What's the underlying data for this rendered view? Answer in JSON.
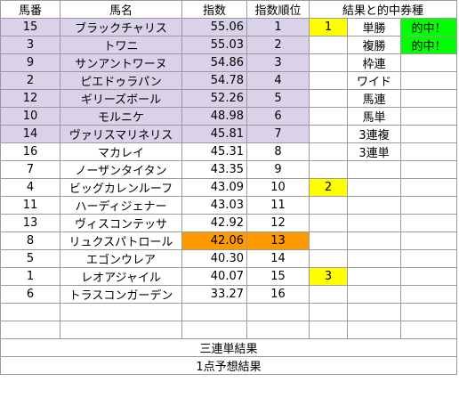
{
  "header": {
    "umaban": "馬番",
    "bamei": "馬名",
    "shisu": "指数",
    "junni": "指数順位",
    "kekka": "結果と的中券種"
  },
  "rows": [
    {
      "umaban": "15",
      "bamei": "ブラックチャリス",
      "shisu": "55.06",
      "junni": "1",
      "place": "1",
      "bet": "単勝",
      "hit": "的中！"
    },
    {
      "umaban": "3",
      "bamei": "トワニ",
      "shisu": "55.03",
      "junni": "2",
      "place": "",
      "bet": "複勝",
      "hit": "的中！"
    },
    {
      "umaban": "9",
      "bamei": "サンアントワーヌ",
      "shisu": "54.86",
      "junni": "3",
      "place": "",
      "bet": "枠連",
      "hit": ""
    },
    {
      "umaban": "2",
      "bamei": "ピエドゥラパン",
      "shisu": "54.78",
      "junni": "4",
      "place": "",
      "bet": "ワイド",
      "hit": ""
    },
    {
      "umaban": "12",
      "bamei": "ギリーズボール",
      "shisu": "52.26",
      "junni": "5",
      "place": "",
      "bet": "馬連",
      "hit": ""
    },
    {
      "umaban": "10",
      "bamei": "モルニケ",
      "shisu": "48.98",
      "junni": "6",
      "place": "",
      "bet": "馬単",
      "hit": ""
    },
    {
      "umaban": "14",
      "bamei": "ヴァリスマリネリス",
      "shisu": "45.81",
      "junni": "7",
      "place": "",
      "bet": "3連複",
      "hit": ""
    },
    {
      "umaban": "16",
      "bamei": "マカレイ",
      "shisu": "45.31",
      "junni": "8",
      "place": "",
      "bet": "3連単",
      "hit": ""
    },
    {
      "umaban": "7",
      "bamei": "ノーザンタイタン",
      "shisu": "43.35",
      "junni": "9",
      "place": "",
      "bet": "",
      "hit": ""
    },
    {
      "umaban": "4",
      "bamei": "ビッグカレンルーフ",
      "shisu": "43.09",
      "junni": "10",
      "place": "2",
      "bet": "",
      "hit": ""
    },
    {
      "umaban": "11",
      "bamei": "ハーディジェナー",
      "shisu": "43.03",
      "junni": "11",
      "place": "",
      "bet": "",
      "hit": ""
    },
    {
      "umaban": "13",
      "bamei": "ヴィスコンテッサ",
      "shisu": "42.92",
      "junni": "12",
      "place": "",
      "bet": "",
      "hit": ""
    },
    {
      "umaban": "8",
      "bamei": "リュクスパトロール",
      "shisu": "42.06",
      "junni": "13",
      "place": "",
      "bet": "",
      "hit": ""
    },
    {
      "umaban": "5",
      "bamei": "エゴンウレア",
      "shisu": "40.30",
      "junni": "14",
      "place": "",
      "bet": "",
      "hit": ""
    },
    {
      "umaban": "1",
      "bamei": "レオアジャイル",
      "shisu": "40.07",
      "junni": "15",
      "place": "3",
      "bet": "",
      "hit": ""
    },
    {
      "umaban": "6",
      "bamei": "トラスコンガーデン",
      "shisu": "33.27",
      "junni": "16",
      "place": "",
      "bet": "",
      "hit": ""
    },
    {
      "umaban": "",
      "bamei": "",
      "shisu": "",
      "junni": "",
      "place": "",
      "bet": "",
      "hit": ""
    },
    {
      "umaban": "",
      "bamei": "",
      "shisu": "",
      "junni": "",
      "place": "",
      "bet": "",
      "hit": ""
    }
  ],
  "footer": {
    "sanrentan_kekka": "三連単結果",
    "itten_yosou": "1点予想結果"
  },
  "colors": {
    "lavender": "#d9d2e9",
    "orange": "#ff9900",
    "yellow": "#ffff00",
    "green": "#00ff00",
    "grid": "#9a9a9a"
  }
}
